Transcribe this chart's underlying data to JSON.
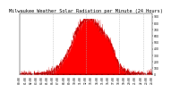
{
  "title": "Milwaukee Weather Solar Radiation per Minute (24 Hours)",
  "background_color": "#ffffff",
  "plot_bg_color": "#ffffff",
  "fill_color": "#ff0000",
  "line_color": "#cc0000",
  "grid_color": "#b0b0b0",
  "num_points": 1440,
  "peak_value": 850,
  "peak_minute": 750,
  "sigma": 170,
  "noise_scale": 30,
  "xlim": [
    0,
    1440
  ],
  "ylim": [
    0,
    950
  ],
  "dashed_lines": [
    360,
    720,
    1080,
    1350
  ],
  "x_tick_interval": 60,
  "title_fontsize": 3.8,
  "tick_fontsize": 2.2
}
